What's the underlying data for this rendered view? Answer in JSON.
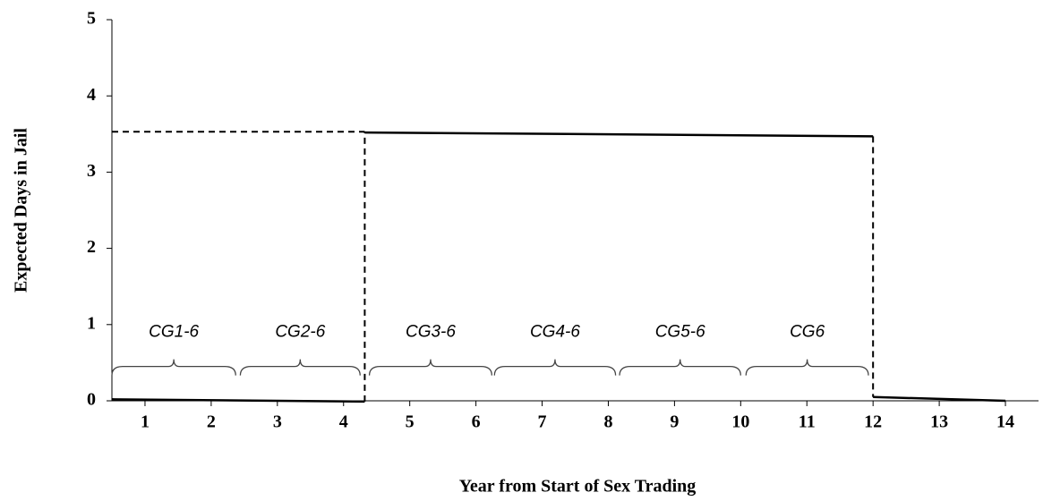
{
  "chart_data": {
    "type": "line",
    "xlabel": "Year from Start of Sex Trading",
    "ylabel": "Expected Days in Jail",
    "xlim": [
      0.5,
      14.5
    ],
    "ylim": [
      0,
      5
    ],
    "xticks": [
      1,
      2,
      3,
      4,
      5,
      6,
      7,
      8,
      9,
      10,
      11,
      12,
      13,
      14
    ],
    "yticks": [
      0,
      1,
      2,
      3,
      4,
      5
    ],
    "series": [
      {
        "color": "#000000",
        "dash": false,
        "x": [
          0.5,
          4.32
        ],
        "values": [
          0.02,
          -0.01
        ]
      },
      {
        "color": "#000000",
        "dash": true,
        "x": [
          0.5,
          4.32
        ],
        "values": [
          3.53,
          3.53
        ]
      },
      {
        "color": "#000000",
        "dash": true,
        "x": [
          4.32,
          4.32
        ],
        "values": [
          -0.01,
          3.53
        ]
      },
      {
        "color": "#000000",
        "dash": false,
        "x": [
          4.32,
          12
        ],
        "values": [
          3.52,
          3.47
        ]
      },
      {
        "color": "#000000",
        "dash": true,
        "x": [
          12,
          12
        ],
        "values": [
          3.47,
          0.05
        ]
      },
      {
        "color": "#000000",
        "dash": false,
        "x": [
          12,
          14
        ],
        "values": [
          0.05,
          0
        ]
      }
    ],
    "annotations": [
      {
        "text": "CG1-6",
        "x": [
          0.5,
          2.37
        ]
      },
      {
        "text": "CG2-6",
        "x": [
          2.44,
          4.25
        ]
      },
      {
        "text": "CG3-6",
        "x": [
          4.39,
          6.24
        ]
      },
      {
        "text": "CG4-6",
        "x": [
          6.28,
          8.11
        ]
      },
      {
        "text": "CG5-6",
        "x": [
          8.17,
          10.0
        ]
      },
      {
        "text": "CG6",
        "x": [
          10.08,
          11.93
        ]
      }
    ]
  }
}
